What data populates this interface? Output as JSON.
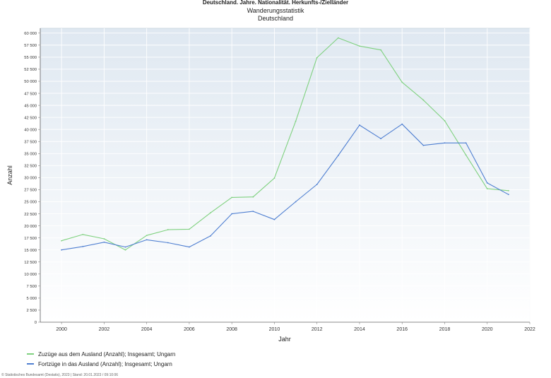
{
  "header": {
    "top_title": "Deutschland, Jahre, Nationalität, Herkunfts-/Zielländer",
    "title": "Wanderungsstatistik",
    "subtitle": "Deutschland"
  },
  "chart_data": {
    "type": "line",
    "xlabel": "Jahr",
    "ylabel": "Anzahl",
    "xlim": [
      1999,
      2022
    ],
    "ylim": [
      0,
      61000
    ],
    "x_ticks": [
      2000,
      2002,
      2004,
      2006,
      2008,
      2010,
      2012,
      2014,
      2016,
      2018,
      2020,
      2022
    ],
    "y_ticks": [
      0,
      2500,
      5000,
      7500,
      10000,
      12500,
      15000,
      17500,
      20000,
      22500,
      25000,
      27500,
      30000,
      32500,
      35000,
      37500,
      40000,
      42500,
      45000,
      47500,
      50000,
      52500,
      55000,
      57500,
      60000
    ],
    "y_tick_labels": [
      "0",
      "2 500",
      "5 000",
      "7 500",
      "10 000",
      "12 500",
      "15 000",
      "17 500",
      "20 000",
      "22 500",
      "25 000",
      "27 500",
      "30 000",
      "32 500",
      "35 000",
      "37 500",
      "40 000",
      "42 500",
      "45 000",
      "47 500",
      "50 000",
      "52 500",
      "55 000",
      "57 500",
      "60 000"
    ],
    "grid": true,
    "legend_position": "bottom-left",
    "x": [
      2000,
      2001,
      2002,
      2003,
      2004,
      2005,
      2006,
      2007,
      2008,
      2009,
      2010,
      2011,
      2012,
      2013,
      2014,
      2015,
      2016,
      2017,
      2018,
      2019,
      2020,
      2021
    ],
    "series": [
      {
        "name": "Zuzüge aus dem Ausland (Anzahl); Insgesamt; Ungarn",
        "color": "#7fd17f",
        "values": [
          16900,
          18200,
          17300,
          15000,
          18000,
          19200,
          19300,
          22700,
          25900,
          26000,
          29900,
          41700,
          54900,
          59000,
          57300,
          56500,
          49800,
          46100,
          41800,
          34700,
          27700,
          27300
        ]
      },
      {
        "name": "Fortzüge in das Ausland (Anzahl); Insgesamt; Ungarn",
        "color": "#4f7fd1",
        "values": [
          15000,
          15700,
          16600,
          15600,
          17100,
          16500,
          15600,
          17900,
          22500,
          23000,
          21300,
          25000,
          28600,
          34600,
          40900,
          38100,
          41100,
          36700,
          37200,
          37200,
          28900,
          26500
        ]
      }
    ]
  },
  "footer": "© Statistisches Bundesamt (Destatis), 2023 | Stand: 20.01.2023 / 09:10:06"
}
